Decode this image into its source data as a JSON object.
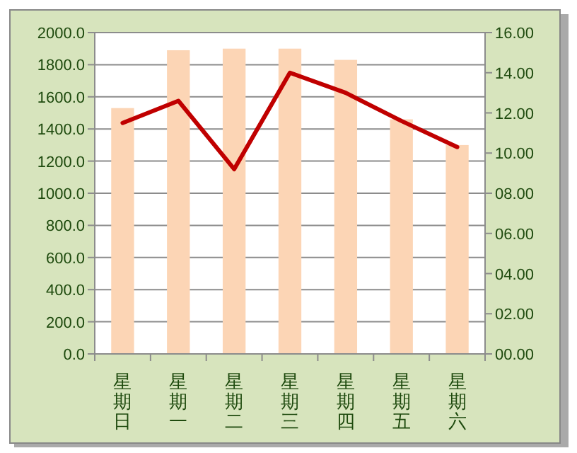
{
  "chart_data": {
    "type": "bar",
    "categories": [
      "星期日",
      "星期一",
      "星期二",
      "星期三",
      "星期四",
      "星期五",
      "星期六"
    ],
    "series": [
      {
        "color": "#fcd5b5",
        "values": [
          1530,
          1890,
          1900,
          1900,
          1830,
          1460,
          1300
        ]
      },
      {
        "type": "line",
        "axis": "y2",
        "color": "#c00000",
        "values": [
          11.5,
          12.6,
          9.2,
          14.0,
          13.0,
          11.6,
          10.3
        ]
      }
    ],
    "ylim": [
      0,
      2000
    ],
    "yticks": [
      {
        "value": 0,
        "label": "0.0"
      },
      {
        "value": 200,
        "label": "200.0"
      },
      {
        "value": 400,
        "label": "400.0"
      },
      {
        "value": 600,
        "label": "600.0"
      },
      {
        "value": 800,
        "label": "800.0"
      },
      {
        "value": 1000,
        "label": "1000.0"
      },
      {
        "value": 1200,
        "label": "1200.0"
      },
      {
        "value": 1400,
        "label": "1400.0"
      },
      {
        "value": 1600,
        "label": "1600.0"
      },
      {
        "value": 1800,
        "label": "1800.0"
      },
      {
        "value": 2000,
        "label": "2000.0"
      }
    ],
    "y2lim": [
      0,
      16
    ],
    "y2ticks": [
      {
        "value": 0,
        "label": "00.00"
      },
      {
        "value": 2,
        "label": "02.00"
      },
      {
        "value": 4,
        "label": "04.00"
      },
      {
        "value": 6,
        "label": "06.00"
      },
      {
        "value": 8,
        "label": "08.00"
      },
      {
        "value": 10,
        "label": "10.00"
      },
      {
        "value": 12,
        "label": "12.00"
      },
      {
        "value": 14,
        "label": "14.00"
      },
      {
        "value": 16,
        "label": "16.00"
      }
    ],
    "grid": "y"
  }
}
